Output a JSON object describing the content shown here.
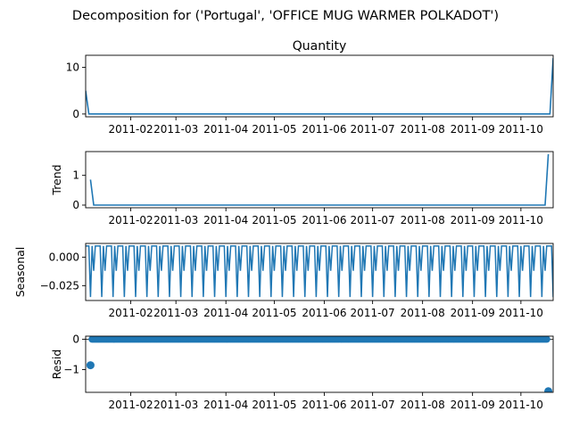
{
  "figure": {
    "suptitle": "Decomposition for ('Portugal', 'OFFICE MUG WARMER POLKADOT')",
    "line_color": "#1f77b4"
  },
  "chart_data": [
    {
      "type": "line",
      "title": "Quantity",
      "ylabel": "",
      "xlim": [
        "2011-01-04",
        "2011-10-21"
      ],
      "ylim": [
        -0.6,
        12.6
      ],
      "yticks": [
        0,
        10
      ],
      "ytick_labels": [
        "0",
        "10"
      ],
      "xticks": [
        "2011-02-01",
        "2011-03-01",
        "2011-04-01",
        "2011-05-01",
        "2011-06-01",
        "2011-07-01",
        "2011-08-01",
        "2011-09-01",
        "2011-10-01"
      ],
      "xtick_labels": [
        "2011-02",
        "2011-03",
        "2011-04",
        "2011-05",
        "2011-06",
        "2011-07",
        "2011-08",
        "2011-09",
        "2011-10"
      ],
      "x": [
        "2011-01-04",
        "2011-01-06",
        "2011-10-19",
        "2011-10-21"
      ],
      "y": [
        5,
        0,
        0,
        12
      ]
    },
    {
      "type": "line",
      "title": "",
      "ylabel": "Trend",
      "xlim": [
        "2011-01-04",
        "2011-10-21"
      ],
      "ylim": [
        -0.09,
        1.8
      ],
      "yticks": [
        0,
        1
      ],
      "ytick_labels": [
        "0",
        "1"
      ],
      "xticks": [
        "2011-02-01",
        "2011-03-01",
        "2011-04-01",
        "2011-05-01",
        "2011-06-01",
        "2011-07-01",
        "2011-08-01",
        "2011-09-01",
        "2011-10-01"
      ],
      "xtick_labels": [
        "2011-02",
        "2011-03",
        "2011-04",
        "2011-05",
        "2011-06",
        "2011-07",
        "2011-08",
        "2011-09",
        "2011-10"
      ],
      "x": [
        "2011-01-07",
        "2011-01-09",
        "2011-10-16",
        "2011-10-18"
      ],
      "y": [
        0.857,
        0,
        0,
        1.714
      ]
    },
    {
      "type": "line",
      "title": "",
      "ylabel": "Seasonal",
      "xlim": [
        "2011-01-04",
        "2011-10-21"
      ],
      "ylim": [
        -0.038,
        0.012
      ],
      "yticks": [
        0.0,
        -0.025
      ],
      "ytick_labels": [
        "0.000",
        "−0.025"
      ],
      "xticks": [
        "2011-02-01",
        "2011-03-01",
        "2011-04-01",
        "2011-05-01",
        "2011-06-01",
        "2011-07-01",
        "2011-08-01",
        "2011-09-01",
        "2011-10-01"
      ],
      "xtick_labels": [
        "2011-02",
        "2011-03",
        "2011-04",
        "2011-05",
        "2011-06",
        "2011-07",
        "2011-08",
        "2011-09",
        "2011-10"
      ],
      "series_start": "2011-01-04",
      "series_end": "2011-10-21",
      "period_pattern": [
        0.0098,
        0.0098,
        0.0098,
        -0.035,
        0.0098,
        -0.012,
        0.0098
      ]
    },
    {
      "type": "scatter",
      "title": "",
      "ylabel": "Resid",
      "xlim": [
        "2011-01-04",
        "2011-10-21"
      ],
      "ylim": [
        -1.75,
        0.1
      ],
      "yticks": [
        0,
        -1
      ],
      "ytick_labels": [
        "0",
        "−1"
      ],
      "xticks": [
        "2011-02-01",
        "2011-03-01",
        "2011-04-01",
        "2011-05-01",
        "2011-06-01",
        "2011-07-01",
        "2011-08-01",
        "2011-09-01",
        "2011-10-01"
      ],
      "xtick_labels": [
        "2011-02",
        "2011-03",
        "2011-04",
        "2011-05",
        "2011-06",
        "2011-07",
        "2011-08",
        "2011-09",
        "2011-10"
      ],
      "series_start": "2011-01-07",
      "series_end": "2011-10-18",
      "baseline": 0,
      "outliers": [
        {
          "x": "2011-01-07",
          "y": -0.857
        },
        {
          "x": "2011-10-18",
          "y": -1.714
        }
      ]
    }
  ]
}
